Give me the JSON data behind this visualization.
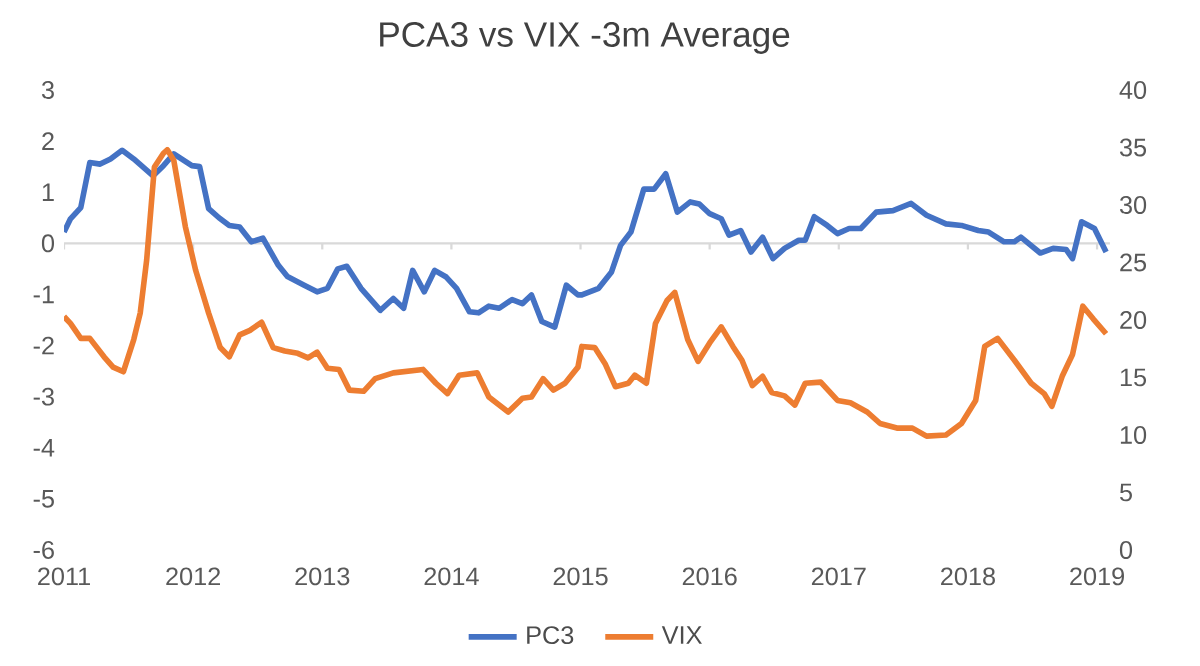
{
  "chart_data": {
    "type": "line",
    "title": "PCA3 vs VIX -3m Average",
    "xlim": [
      2011,
      2019.1
    ],
    "xticks": [
      2011,
      2012,
      2013,
      2014,
      2015,
      2016,
      2017,
      2018,
      2019
    ],
    "ylim": [
      -6,
      3
    ],
    "yticks": [
      -6,
      -5,
      -4,
      -3,
      -2,
      -1,
      0,
      1,
      2,
      3
    ],
    "y2lim": [
      0,
      40
    ],
    "y2ticks": [
      0,
      5,
      10,
      15,
      20,
      25,
      30,
      35,
      40
    ],
    "legend": "bottom",
    "grid": false,
    "ref_lines": [
      {
        "axis": "y",
        "value": 0,
        "color": "#d9d9d9"
      }
    ],
    "series": [
      {
        "name": "PC3",
        "color": "#4472c4",
        "x": [
          2011.0,
          2011.05,
          2011.13,
          2011.2,
          2011.28,
          2011.36,
          2011.45,
          2011.54,
          2011.69,
          2011.77,
          2011.85,
          2011.99,
          2012.05,
          2012.12,
          2012.2,
          2012.28,
          2012.36,
          2012.45,
          2012.54,
          2012.66,
          2012.73,
          2012.86,
          2012.96,
          2013.04,
          2013.12,
          2013.19,
          2013.3,
          2013.45,
          2013.55,
          2013.63,
          2013.7,
          2013.79,
          2013.87,
          2013.96,
          2014.04,
          2014.14,
          2014.21,
          2014.29,
          2014.37,
          2014.47,
          2014.55,
          2014.62,
          2014.7,
          2014.8,
          2014.89,
          2014.98,
          2015.01,
          2015.14,
          2015.24,
          2015.31,
          2015.39,
          2015.49,
          2015.57,
          2015.66,
          2015.75,
          2015.85,
          2015.92,
          2016.0,
          2016.09,
          2016.15,
          2016.24,
          2016.32,
          2016.41,
          2016.49,
          2016.58,
          2016.69,
          2016.74,
          2016.81,
          2016.91,
          2016.99,
          2017.08,
          2017.17,
          2017.29,
          2017.42,
          2017.56,
          2017.68,
          2017.83,
          2017.95,
          2018.08,
          2018.16,
          2018.28,
          2018.36,
          2018.41,
          2018.56,
          2018.66,
          2018.76,
          2018.81,
          2018.88,
          2018.98,
          2019.07
        ],
        "values": [
          0.22,
          0.48,
          0.7,
          1.58,
          1.55,
          1.65,
          1.82,
          1.65,
          1.32,
          1.52,
          1.75,
          1.52,
          1.5,
          0.68,
          0.5,
          0.35,
          0.32,
          0.03,
          0.1,
          -0.43,
          -0.65,
          -0.82,
          -0.95,
          -0.88,
          -0.5,
          -0.45,
          -0.88,
          -1.31,
          -1.08,
          -1.27,
          -0.53,
          -0.95,
          -0.53,
          -0.66,
          -0.88,
          -1.34,
          -1.36,
          -1.23,
          -1.27,
          -1.1,
          -1.18,
          -1.01,
          -1.53,
          -1.64,
          -0.82,
          -1.01,
          -1.01,
          -0.88,
          -0.56,
          -0.04,
          0.22,
          1.06,
          1.06,
          1.36,
          0.61,
          0.81,
          0.77,
          0.58,
          0.48,
          0.16,
          0.25,
          -0.17,
          0.12,
          -0.3,
          -0.1,
          0.06,
          0.06,
          0.52,
          0.35,
          0.19,
          0.29,
          0.29,
          0.61,
          0.64,
          0.78,
          0.55,
          0.38,
          0.35,
          0.25,
          0.22,
          0.03,
          0.03,
          0.12,
          -0.19,
          -0.1,
          -0.12,
          -0.3,
          0.42,
          0.29,
          -0.17
        ]
      },
      {
        "name": "VIX",
        "color": "#ed7d31",
        "axis": "y2",
        "x": [
          2011.0,
          2011.05,
          2011.13,
          2011.2,
          2011.31,
          2011.38,
          2011.46,
          2011.54,
          2011.59,
          2011.64,
          2011.7,
          2011.77,
          2011.8,
          2011.85,
          2011.94,
          2012.02,
          2012.12,
          2012.21,
          2012.28,
          2012.36,
          2012.44,
          2012.53,
          2012.62,
          2012.71,
          2012.81,
          2012.89,
          2012.96,
          2013.04,
          2013.13,
          2013.21,
          2013.32,
          2013.41,
          2013.55,
          2013.78,
          2013.88,
          2013.97,
          2014.06,
          2014.2,
          2014.29,
          2014.44,
          2014.55,
          2014.62,
          2014.71,
          2014.79,
          2014.88,
          2014.98,
          2015.01,
          2015.11,
          2015.19,
          2015.27,
          2015.37,
          2015.42,
          2015.51,
          2015.58,
          2015.67,
          2015.73,
          2015.83,
          2015.91,
          2016.0,
          2016.09,
          2016.18,
          2016.25,
          2016.33,
          2016.41,
          2016.48,
          2016.58,
          2016.66,
          2016.74,
          2016.86,
          2016.99,
          2017.09,
          2017.22,
          2017.32,
          2017.45,
          2017.57,
          2017.68,
          2017.83,
          2017.95,
          2018.06,
          2018.13,
          2018.23,
          2018.36,
          2018.49,
          2018.59,
          2018.65,
          2018.73,
          2018.81,
          2018.89,
          2018.97,
          2019.07
        ],
        "values": [
          20.3,
          19.7,
          18.4,
          18.4,
          16.8,
          15.9,
          15.5,
          18.3,
          20.6,
          25.2,
          33.3,
          34.5,
          34.8,
          33.9,
          28.1,
          24.3,
          20.6,
          17.6,
          16.8,
          18.7,
          19.1,
          19.8,
          17.6,
          17.3,
          17.1,
          16.7,
          17.2,
          15.8,
          15.7,
          13.9,
          13.8,
          14.9,
          15.4,
          15.7,
          14.5,
          13.6,
          15.2,
          15.4,
          13.3,
          12.0,
          13.2,
          13.3,
          14.9,
          13.9,
          14.5,
          15.9,
          17.7,
          17.6,
          16.2,
          14.2,
          14.5,
          15.2,
          14.5,
          19.7,
          21.7,
          22.4,
          18.3,
          16.4,
          18.0,
          19.4,
          17.7,
          16.5,
          14.3,
          15.1,
          13.7,
          13.4,
          12.6,
          14.5,
          14.6,
          13.0,
          12.8,
          12.0,
          11.0,
          10.6,
          10.6,
          9.9,
          10.0,
          11.0,
          13.0,
          17.7,
          18.4,
          16.5,
          14.5,
          13.6,
          12.5,
          15.1,
          17.0,
          21.2,
          20.1,
          18.8
        ]
      }
    ]
  }
}
